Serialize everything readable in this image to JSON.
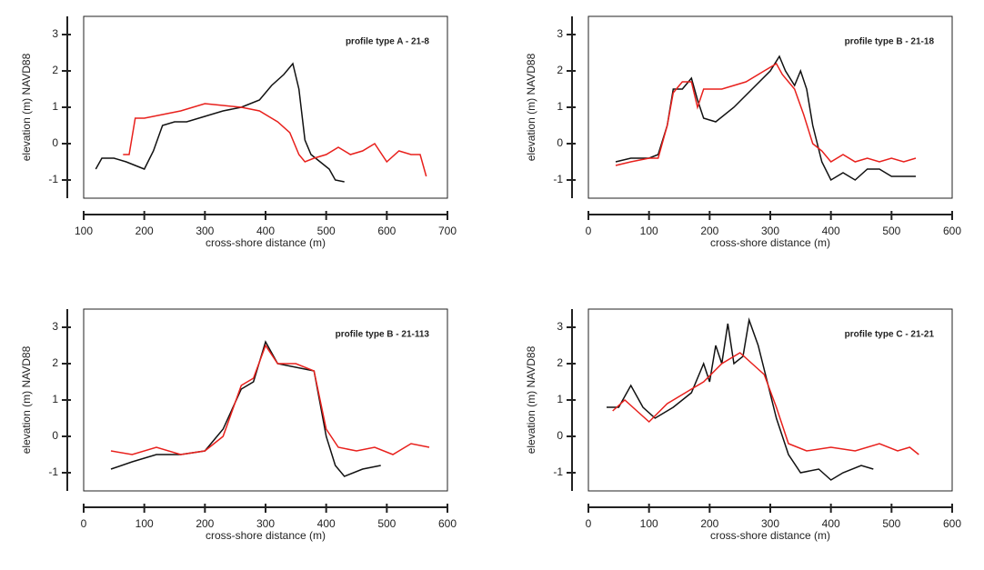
{
  "chart_data": [
    {
      "type": "line",
      "annotation": "profile type A - 21-8",
      "xlabel": "cross-shore distance (m)",
      "ylabel": "elevation (m) NAVD88",
      "xlim": [
        100,
        700
      ],
      "xticks": [
        100,
        200,
        300,
        400,
        500,
        600,
        700
      ],
      "ylim": [
        -1.5,
        3.5
      ],
      "yticks": [
        -1,
        0,
        1,
        2,
        3
      ],
      "series": [
        {
          "color": "#111111",
          "x": [
            120,
            130,
            150,
            170,
            185,
            200,
            215,
            230,
            250,
            270,
            300,
            330,
            360,
            390,
            410,
            430,
            445,
            455,
            465,
            475,
            490,
            505,
            515,
            530
          ],
          "values": [
            -0.7,
            -0.4,
            -0.4,
            -0.5,
            -0.6,
            -0.7,
            -0.2,
            0.5,
            0.6,
            0.6,
            0.75,
            0.9,
            1.0,
            1.2,
            1.6,
            1.9,
            2.2,
            1.5,
            0.1,
            -0.3,
            -0.5,
            -0.7,
            -1.0,
            -1.05
          ]
        },
        {
          "color": "#e8201c",
          "x": [
            165,
            175,
            185,
            200,
            230,
            260,
            300,
            330,
            360,
            390,
            420,
            440,
            455,
            465,
            480,
            500,
            520,
            540,
            560,
            580,
            600,
            620,
            640,
            655,
            665
          ],
          "values": [
            -0.3,
            -0.3,
            0.7,
            0.7,
            0.8,
            0.9,
            1.1,
            1.05,
            1.0,
            0.9,
            0.6,
            0.3,
            -0.3,
            -0.5,
            -0.4,
            -0.3,
            -0.1,
            -0.3,
            -0.2,
            0.0,
            -0.5,
            -0.2,
            -0.3,
            -0.3,
            -0.9
          ]
        }
      ]
    },
    {
      "type": "line",
      "annotation": "profile type B - 21-18",
      "xlabel": "cross-shore distance (m)",
      "ylabel": "elevation (m) NAVD88",
      "xlim": [
        0,
        600
      ],
      "xticks": [
        0,
        100,
        200,
        300,
        400,
        500,
        600
      ],
      "ylim": [
        -1.5,
        3.5
      ],
      "yticks": [
        -1,
        0,
        1,
        2,
        3
      ],
      "series": [
        {
          "color": "#111111",
          "x": [
            45,
            70,
            100,
            115,
            130,
            140,
            155,
            170,
            180,
            190,
            210,
            240,
            270,
            300,
            315,
            325,
            340,
            350,
            360,
            370,
            385,
            400,
            420,
            440,
            460,
            480,
            500,
            520,
            540
          ],
          "values": [
            -0.5,
            -0.4,
            -0.4,
            -0.3,
            0.5,
            1.5,
            1.5,
            1.8,
            1.2,
            0.7,
            0.6,
            1.0,
            1.5,
            2.0,
            2.4,
            2.0,
            1.6,
            2.0,
            1.5,
            0.5,
            -0.5,
            -1.0,
            -0.8,
            -1.0,
            -0.7,
            -0.7,
            -0.9,
            -0.9,
            -0.9
          ]
        },
        {
          "color": "#e8201c",
          "x": [
            45,
            70,
            100,
            115,
            130,
            140,
            155,
            170,
            180,
            190,
            220,
            260,
            290,
            310,
            320,
            340,
            355,
            370,
            385,
            400,
            420,
            440,
            460,
            480,
            500,
            520,
            540
          ],
          "values": [
            -0.6,
            -0.5,
            -0.4,
            -0.4,
            0.5,
            1.4,
            1.7,
            1.7,
            1.0,
            1.5,
            1.5,
            1.7,
            2.0,
            2.2,
            1.9,
            1.5,
            0.8,
            0.0,
            -0.2,
            -0.5,
            -0.3,
            -0.5,
            -0.4,
            -0.5,
            -0.4,
            -0.5,
            -0.4
          ]
        }
      ]
    },
    {
      "type": "line",
      "annotation": "profile type B - 21-113",
      "xlabel": "cross-shore distance (m)",
      "ylabel": "elevation (m) NAVD88",
      "xlim": [
        0,
        600
      ],
      "xticks": [
        0,
        100,
        200,
        300,
        400,
        500,
        600
      ],
      "ylim": [
        -1.5,
        3.5
      ],
      "yticks": [
        -1,
        0,
        1,
        2,
        3
      ],
      "series": [
        {
          "color": "#111111",
          "x": [
            45,
            80,
            120,
            160,
            200,
            230,
            260,
            280,
            300,
            320,
            350,
            380,
            400,
            415,
            430,
            460,
            490
          ],
          "values": [
            -0.9,
            -0.7,
            -0.5,
            -0.5,
            -0.4,
            0.2,
            1.3,
            1.5,
            2.6,
            2.0,
            1.9,
            1.8,
            0.0,
            -0.8,
            -1.1,
            -0.9,
            -0.8
          ]
        },
        {
          "color": "#e8201c",
          "x": [
            45,
            80,
            120,
            160,
            200,
            230,
            260,
            280,
            300,
            320,
            350,
            380,
            400,
            420,
            450,
            480,
            510,
            540,
            570
          ],
          "values": [
            -0.4,
            -0.5,
            -0.3,
            -0.5,
            -0.4,
            0.0,
            1.4,
            1.6,
            2.5,
            2.0,
            2.0,
            1.8,
            0.2,
            -0.3,
            -0.4,
            -0.3,
            -0.5,
            -0.2,
            -0.3
          ]
        }
      ]
    },
    {
      "type": "line",
      "annotation": "profile type C - 21-21",
      "xlabel": "cross-shore distance (m)",
      "ylabel": "elevation (m) NAVD88",
      "xlim": [
        0,
        600
      ],
      "xticks": [
        0,
        100,
        200,
        300,
        400,
        500,
        600
      ],
      "ylim": [
        -1.5,
        3.5
      ],
      "yticks": [
        -1,
        0,
        1,
        2,
        3
      ],
      "series": [
        {
          "color": "#111111",
          "x": [
            30,
            50,
            70,
            90,
            110,
            140,
            170,
            190,
            200,
            210,
            220,
            230,
            240,
            255,
            265,
            280,
            295,
            310,
            330,
            350,
            380,
            400,
            420,
            450,
            470
          ],
          "values": [
            0.8,
            0.8,
            1.4,
            0.8,
            0.5,
            0.8,
            1.2,
            2.0,
            1.5,
            2.5,
            2.0,
            3.1,
            2.0,
            2.2,
            3.2,
            2.5,
            1.5,
            0.5,
            -0.5,
            -1.0,
            -0.9,
            -1.2,
            -1.0,
            -0.8,
            -0.9
          ]
        },
        {
          "color": "#e8201c",
          "x": [
            40,
            60,
            80,
            100,
            130,
            160,
            190,
            220,
            250,
            270,
            290,
            310,
            330,
            360,
            400,
            440,
            480,
            510,
            530,
            545
          ],
          "values": [
            0.7,
            1.0,
            0.7,
            0.4,
            0.9,
            1.2,
            1.5,
            2.0,
            2.3,
            2.0,
            1.7,
            0.8,
            -0.2,
            -0.4,
            -0.3,
            -0.4,
            -0.2,
            -0.4,
            -0.3,
            -0.5
          ]
        }
      ]
    }
  ]
}
